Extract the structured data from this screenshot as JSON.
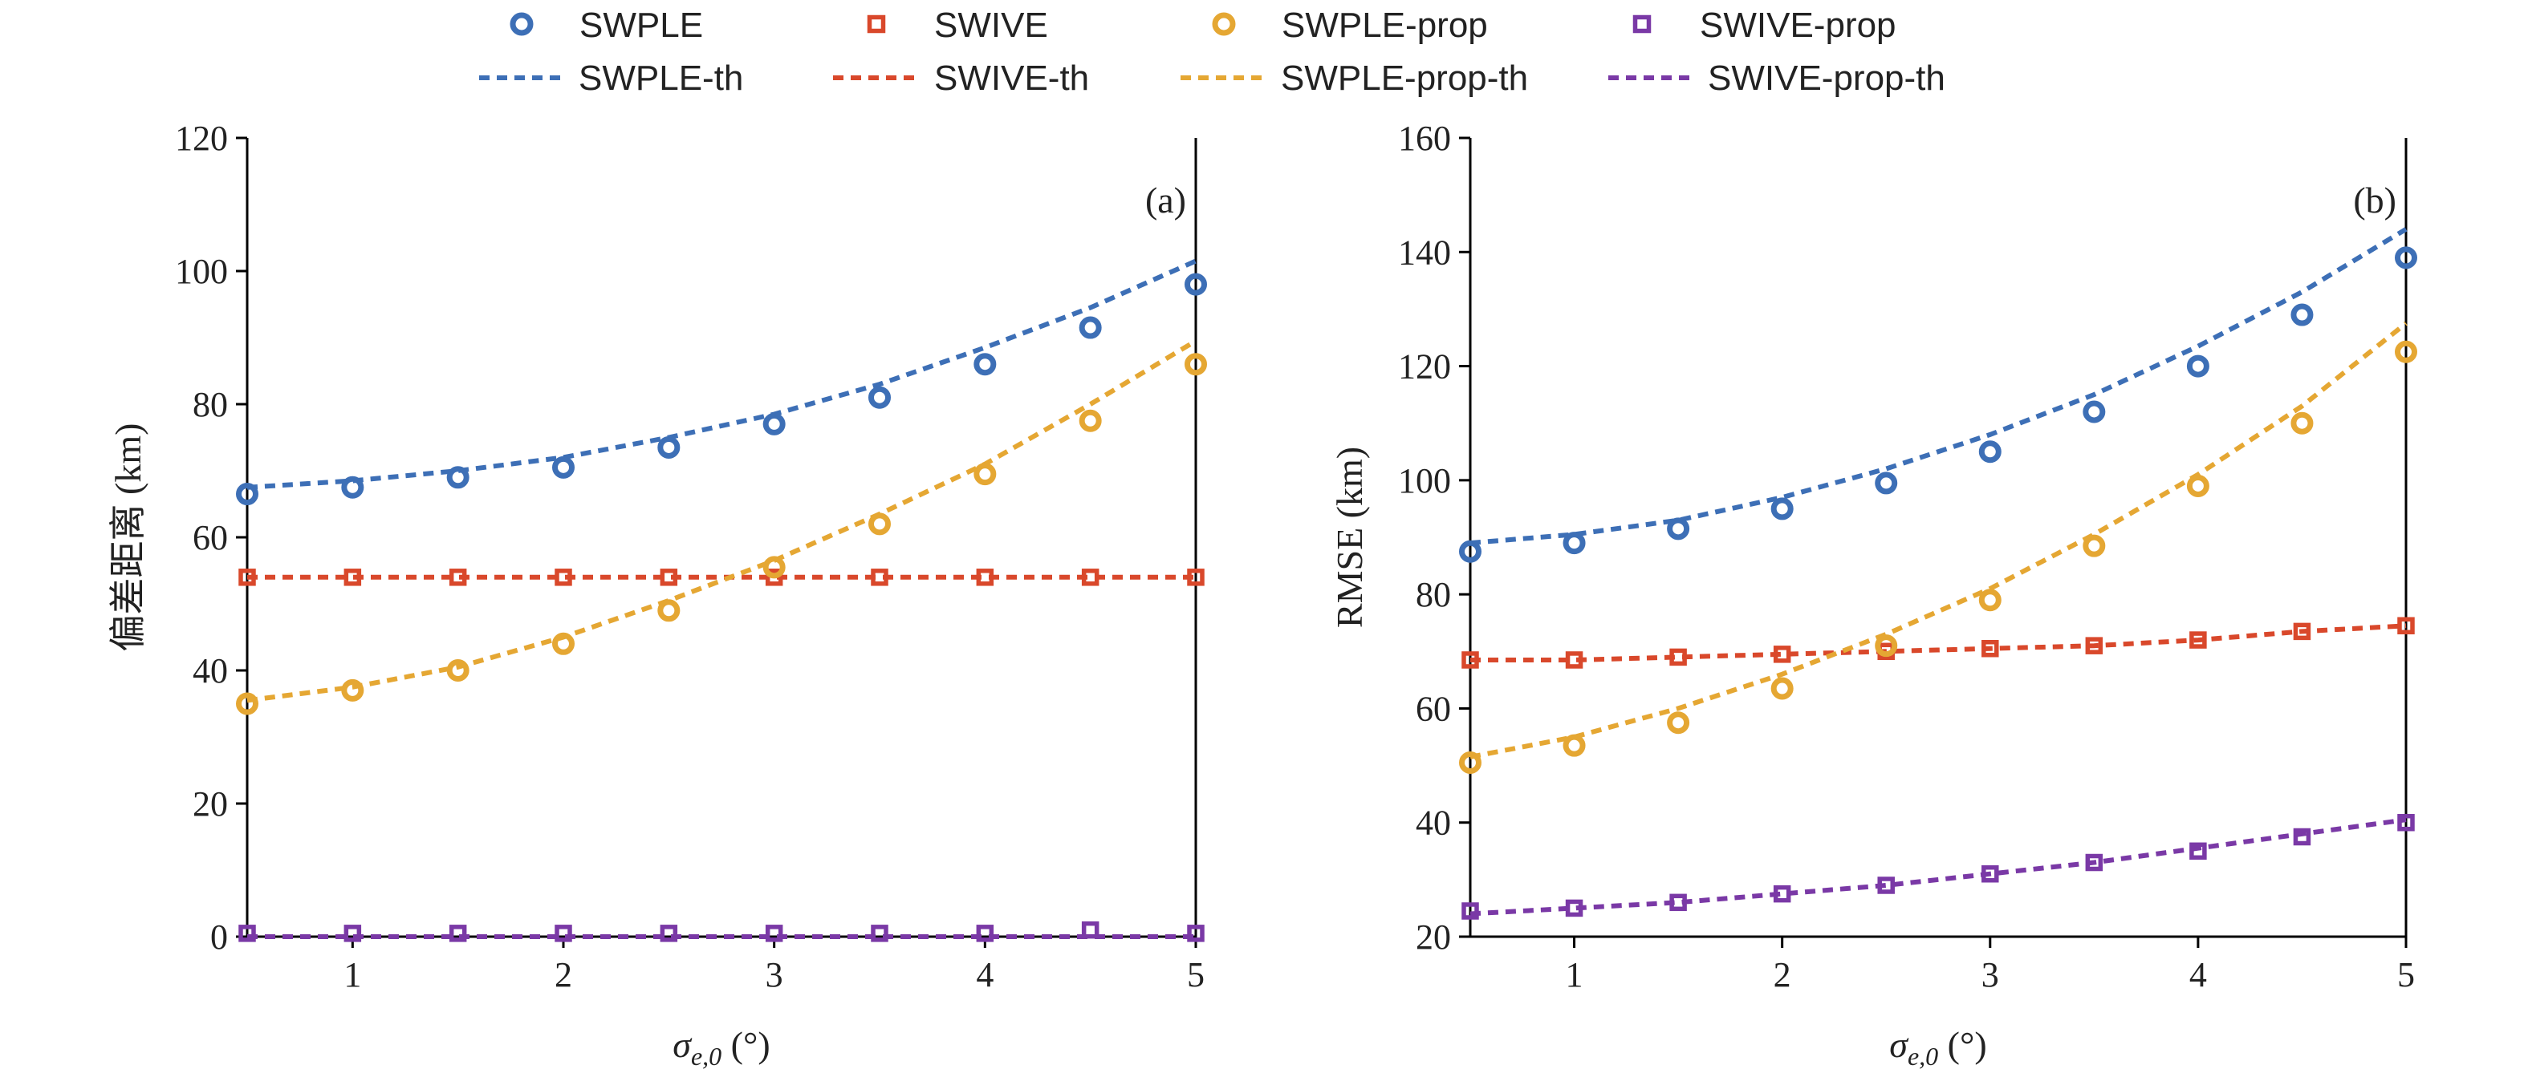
{
  "colors": {
    "SWPLE": "#3d6fb6",
    "SWIVE": "#d9482b",
    "SWPLE-prop": "#e5a733",
    "SWIVE-prop": "#7a39a6"
  },
  "legend": [
    {
      "label": "SWPLE",
      "series": "SWPLE",
      "kind": "marker",
      "marker": "circle"
    },
    {
      "label": "SWIVE",
      "series": "SWIVE",
      "kind": "marker",
      "marker": "square"
    },
    {
      "label": "SWPLE-prop",
      "series": "SWPLE-prop",
      "kind": "marker",
      "marker": "circle"
    },
    {
      "label": "SWIVE-prop",
      "series": "SWIVE-prop",
      "kind": "marker",
      "marker": "square"
    },
    {
      "label": "SWPLE-th",
      "series": "SWPLE",
      "kind": "line"
    },
    {
      "label": "SWIVE-th",
      "series": "SWIVE",
      "kind": "line"
    },
    {
      "label": "SWPLE-prop-th",
      "series": "SWPLE-prop",
      "kind": "line"
    },
    {
      "label": "SWIVE-prop-th",
      "series": "SWIVE-prop",
      "kind": "line"
    }
  ],
  "chart_data": [
    {
      "type": "scatter",
      "panel_label": "(a)",
      "xlabel": "σ_{e,0} (°)",
      "ylabel": "偏差距离 (km)",
      "xlim": [
        0.5,
        5
      ],
      "ylim": [
        0,
        120
      ],
      "xticks": [
        1,
        2,
        3,
        4,
        5
      ],
      "yticks": [
        0,
        20,
        40,
        60,
        80,
        100,
        120
      ],
      "x": [
        0.5,
        1,
        1.5,
        2,
        2.5,
        3,
        3.5,
        4,
        4.5,
        5
      ],
      "series": [
        {
          "name": "SWPLE",
          "marker": "circle",
          "values": [
            66.5,
            67.5,
            69,
            70.5,
            73.5,
            77,
            81,
            86,
            91.5,
            98
          ]
        },
        {
          "name": "SWIVE",
          "marker": "square",
          "values": [
            54,
            54,
            54,
            54,
            54,
            54,
            54,
            54,
            54,
            54
          ]
        },
        {
          "name": "SWPLE-prop",
          "marker": "circle",
          "values": [
            35,
            37,
            40,
            44,
            49,
            55.5,
            62,
            69.5,
            77.5,
            86
          ]
        },
        {
          "name": "SWIVE-prop",
          "marker": "square",
          "values": [
            0.5,
            0.5,
            0.5,
            0.5,
            0.5,
            0.5,
            0.5,
            0.5,
            1,
            0.5
          ]
        },
        {
          "name": "SWPLE-th",
          "type": "line",
          "values": [
            67.5,
            68.5,
            70,
            72,
            75,
            78.5,
            83,
            88.5,
            94.5,
            101.5
          ]
        },
        {
          "name": "SWIVE-th",
          "type": "line",
          "values": [
            54,
            54,
            54,
            54,
            54,
            54,
            54,
            54,
            54,
            54
          ]
        },
        {
          "name": "SWPLE-prop-th",
          "type": "line",
          "values": [
            35.5,
            37.5,
            40.5,
            45,
            50.5,
            56.5,
            63.5,
            71,
            80,
            89.5
          ]
        },
        {
          "name": "SWIVE-prop-th",
          "type": "line",
          "values": [
            0,
            0,
            0,
            0,
            0,
            0,
            0,
            0,
            0,
            0
          ]
        }
      ]
    },
    {
      "type": "scatter",
      "panel_label": "(b)",
      "xlabel": "σ_{e,0} (°)",
      "ylabel": "RMSE (km)",
      "xlim": [
        0.5,
        5
      ],
      "ylim": [
        20,
        160
      ],
      "xticks": [
        1,
        2,
        3,
        4,
        5
      ],
      "yticks": [
        20,
        40,
        60,
        80,
        100,
        120,
        140,
        160
      ],
      "x": [
        0.5,
        1,
        1.5,
        2,
        2.5,
        3,
        3.5,
        4,
        4.5,
        5
      ],
      "series": [
        {
          "name": "SWPLE",
          "marker": "circle",
          "values": [
            87.5,
            89,
            91.5,
            95,
            99.5,
            105,
            112,
            120,
            129,
            139
          ]
        },
        {
          "name": "SWIVE",
          "marker": "square",
          "values": [
            68.5,
            68.5,
            69,
            69.5,
            70,
            70.5,
            71,
            72,
            73.5,
            74.5
          ]
        },
        {
          "name": "SWPLE-prop",
          "marker": "circle",
          "values": [
            50.5,
            53.5,
            57.5,
            63.5,
            71,
            79,
            88.5,
            99,
            110,
            122.5
          ]
        },
        {
          "name": "SWIVE-prop",
          "marker": "square",
          "values": [
            24.5,
            25,
            26,
            27.5,
            29,
            31,
            33,
            35,
            37.5,
            40
          ]
        },
        {
          "name": "SWPLE-th",
          "type": "line",
          "values": [
            89,
            90.5,
            93,
            97,
            102,
            108,
            115,
            123.5,
            133,
            144
          ]
        },
        {
          "name": "SWIVE-th",
          "type": "line",
          "values": [
            68.5,
            68.5,
            69,
            69.5,
            70,
            70.5,
            71,
            72,
            73.5,
            74.5
          ]
        },
        {
          "name": "SWPLE-prop-th",
          "type": "line",
          "values": [
            51.5,
            55,
            60,
            66,
            73,
            81,
            90.5,
            101,
            113,
            127.5
          ]
        },
        {
          "name": "SWIVE-prop-th",
          "type": "line",
          "values": [
            24,
            25,
            26,
            27.5,
            29,
            31,
            33,
            35.5,
            38,
            40.5
          ]
        }
      ]
    }
  ]
}
